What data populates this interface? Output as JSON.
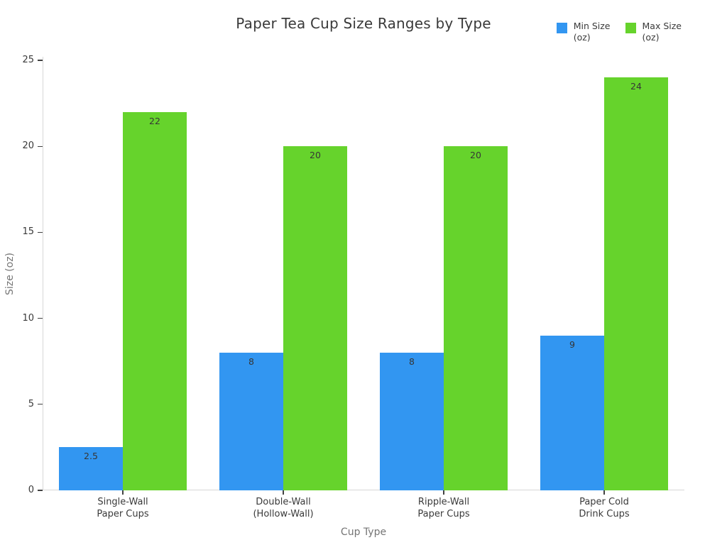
{
  "chart_data": {
    "type": "bar",
    "title": "Paper Tea Cup Size Ranges by Type",
    "xlabel": "Cup Type",
    "ylabel": "Size (oz)",
    "categories": [
      "Single-Wall\nPaper Cups",
      "Double-Wall\n(Hollow-Wall)",
      "Ripple-Wall\nPaper Cups",
      "Paper Cold\nDrink Cups"
    ],
    "series": [
      {
        "name": "Min Size\n(oz)",
        "color": "#3296f1",
        "values": [
          2.5,
          8,
          8,
          9
        ]
      },
      {
        "name": "Max Size\n(oz)",
        "color": "#66d32c",
        "values": [
          22,
          20,
          20,
          24
        ]
      }
    ],
    "ylim": [
      0,
      25
    ],
    "yticks": [
      0,
      5,
      10,
      15,
      20,
      25
    ],
    "grid": false,
    "legend_position": "top-right",
    "bar_value_labels": true,
    "bar_value_label_texts": [
      [
        "2.5",
        "8",
        "8",
        "9"
      ],
      [
        "22",
        "20",
        "20",
        "24"
      ]
    ]
  },
  "style": {
    "background_color": "#ffffff",
    "spine_color": "#d7d7d7",
    "tick_color": "#414141",
    "tick_label_color": "#3a3a3a",
    "axis_title_color": "#757575",
    "title_color": "#3a3a3a",
    "value_label_color": "#363636"
  }
}
